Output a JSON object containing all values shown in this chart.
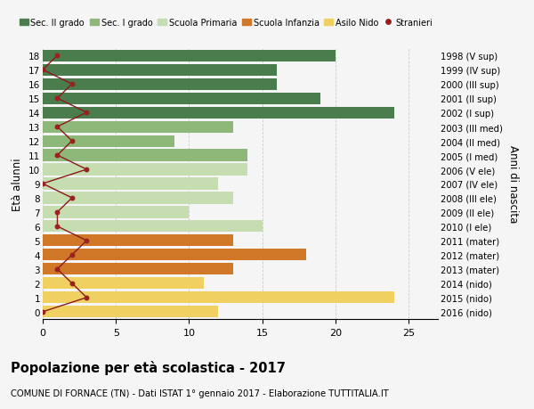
{
  "ages": [
    18,
    17,
    16,
    15,
    14,
    13,
    12,
    11,
    10,
    9,
    8,
    7,
    6,
    5,
    4,
    3,
    2,
    1,
    0
  ],
  "bar_values": [
    20,
    16,
    16,
    19,
    24,
    13,
    9,
    14,
    14,
    12,
    13,
    10,
    15,
    13,
    18,
    13,
    11,
    24,
    12
  ],
  "right_labels": [
    "1998 (V sup)",
    "1999 (IV sup)",
    "2000 (III sup)",
    "2001 (II sup)",
    "2002 (I sup)",
    "2003 (III med)",
    "2004 (II med)",
    "2005 (I med)",
    "2006 (V ele)",
    "2007 (IV ele)",
    "2008 (III ele)",
    "2009 (II ele)",
    "2010 (I ele)",
    "2011 (mater)",
    "2012 (mater)",
    "2013 (mater)",
    "2014 (nido)",
    "2015 (nido)",
    "2016 (nido)"
  ],
  "bar_colors": [
    "#4a7c4e",
    "#4a7c4e",
    "#4a7c4e",
    "#4a7c4e",
    "#4a7c4e",
    "#8db87a",
    "#8db87a",
    "#8db87a",
    "#c5ddb0",
    "#c5ddb0",
    "#c5ddb0",
    "#c5ddb0",
    "#c5ddb0",
    "#d07828",
    "#d07828",
    "#d07828",
    "#f0d060",
    "#f0d060",
    "#f0d060"
  ],
  "legend_labels": [
    "Sec. II grado",
    "Sec. I grado",
    "Scuola Primaria",
    "Scuola Infanzia",
    "Asilo Nido",
    "Stranieri"
  ],
  "legend_colors": [
    "#4a7c4e",
    "#8db87a",
    "#c5ddb0",
    "#d07828",
    "#f0d060",
    "#9b1c1c"
  ],
  "title": "Popolazione per età scolastica - 2017",
  "subtitle": "COMUNE DI FORNACE (TN) - Dati ISTAT 1° gennaio 2017 - Elaborazione TUTTITALIA.IT",
  "ylabel_left": "Età alunni",
  "ylabel_right": "Anni di nascita",
  "xlim": [
    0,
    27
  ],
  "background_color": "#f5f5f5",
  "grid_color": "#cccccc",
  "stranieri_x": [
    1,
    0,
    2,
    1,
    3,
    1,
    2,
    1,
    3,
    0,
    2,
    1,
    1,
    3,
    2,
    1,
    2,
    3,
    0
  ],
  "stranieri_line_color": "#8b1a1a",
  "stranieri_dot_color": "#9b2020"
}
